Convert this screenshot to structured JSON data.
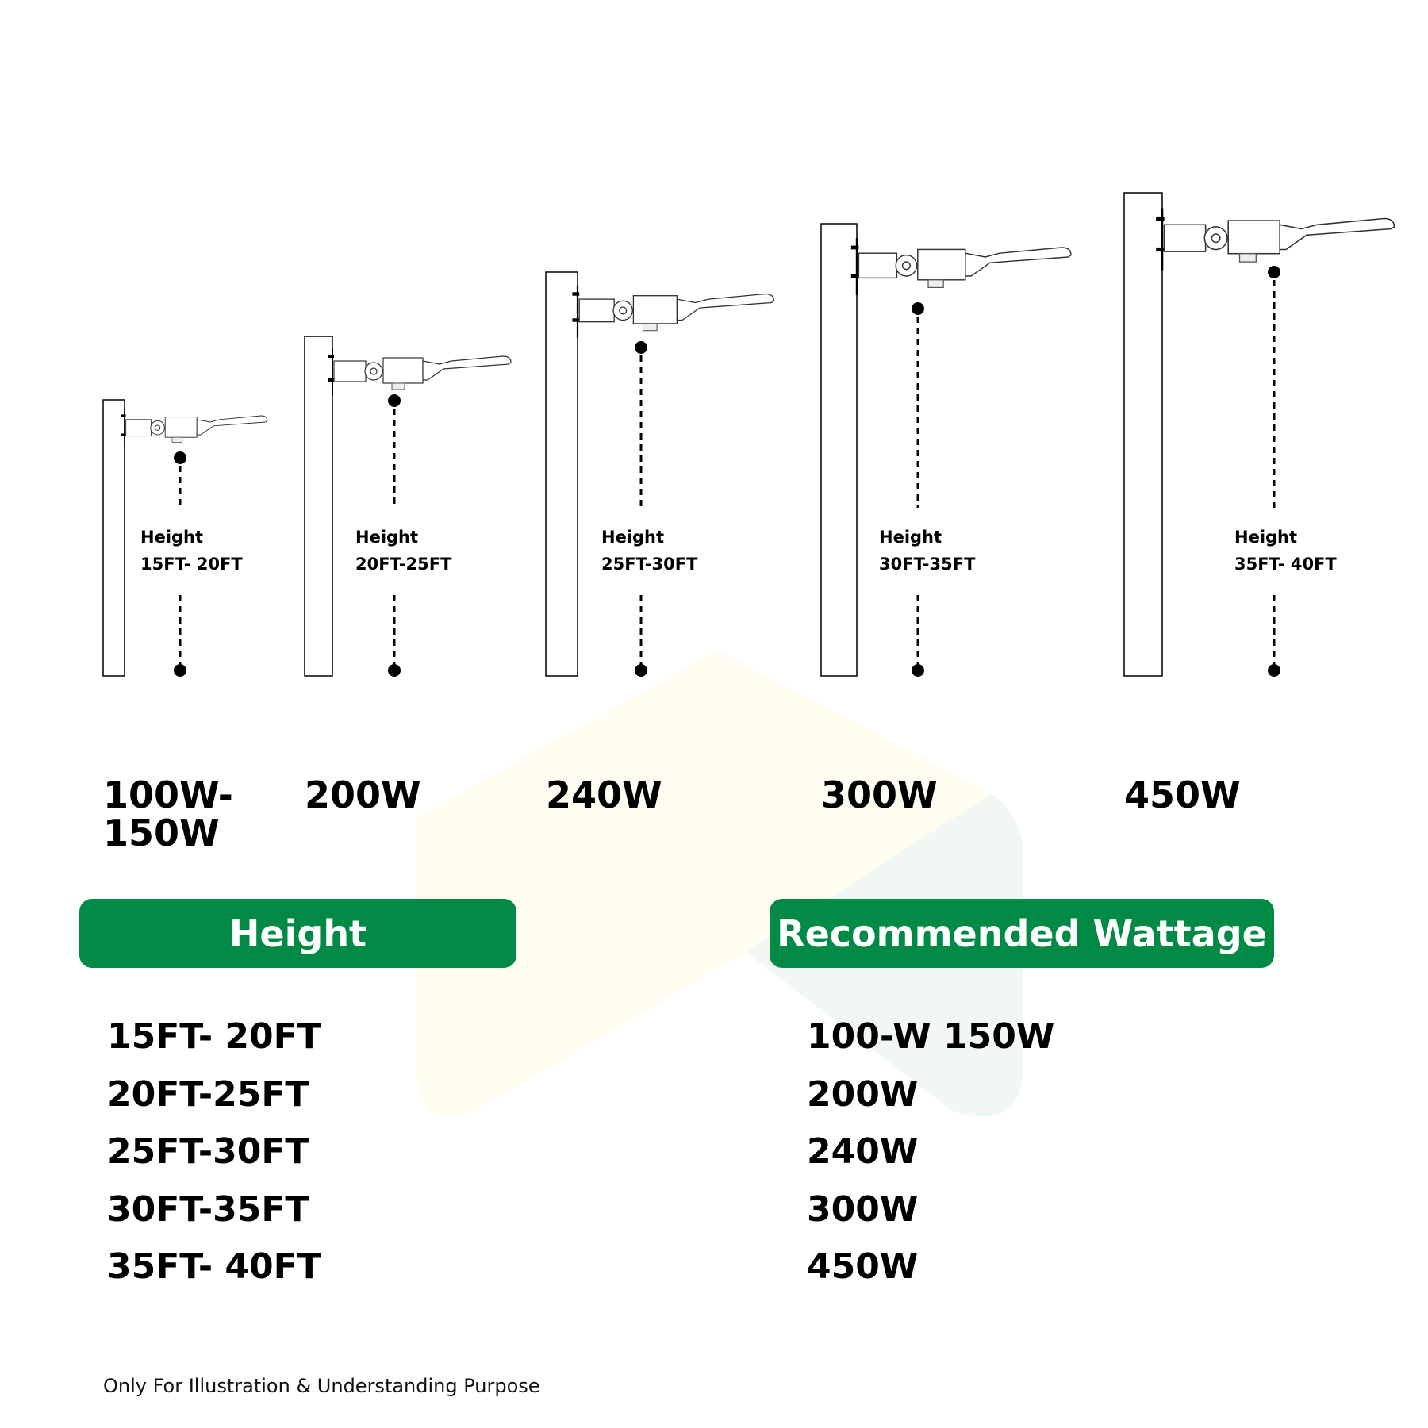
{
  "poles": [
    {
      "height_title": "Height",
      "height_range": "15FT- 20FT",
      "wattage": "100W-\n150W"
    },
    {
      "height_title": "Height",
      "height_range": "20FT-25FT",
      "wattage": "200W"
    },
    {
      "height_title": "Height",
      "height_range": "25FT-30FT",
      "wattage": "240W"
    },
    {
      "height_title": "Height",
      "height_range": "30FT-35FT",
      "wattage": "300W"
    },
    {
      "height_title": "Height",
      "height_range": "35FT- 40FT",
      "wattage": "450W"
    }
  ],
  "table": {
    "height_header": "Height",
    "wattage_header": "Recommended Wattage",
    "heights": [
      "15FT- 20FT",
      "20FT-25FT",
      "25FT-30FT",
      "30FT-35FT",
      "35FT- 40FT"
    ],
    "wattages": [
      "100-W 150W",
      "200W",
      "240W",
      "300W",
      "450W"
    ]
  },
  "footer": "Only For Illustration & Understanding Purpose",
  "colors": {
    "accent": "#008a45",
    "bg_shape_yellow": "#fffcf0",
    "bg_shape_green": "#f1f8f4"
  }
}
